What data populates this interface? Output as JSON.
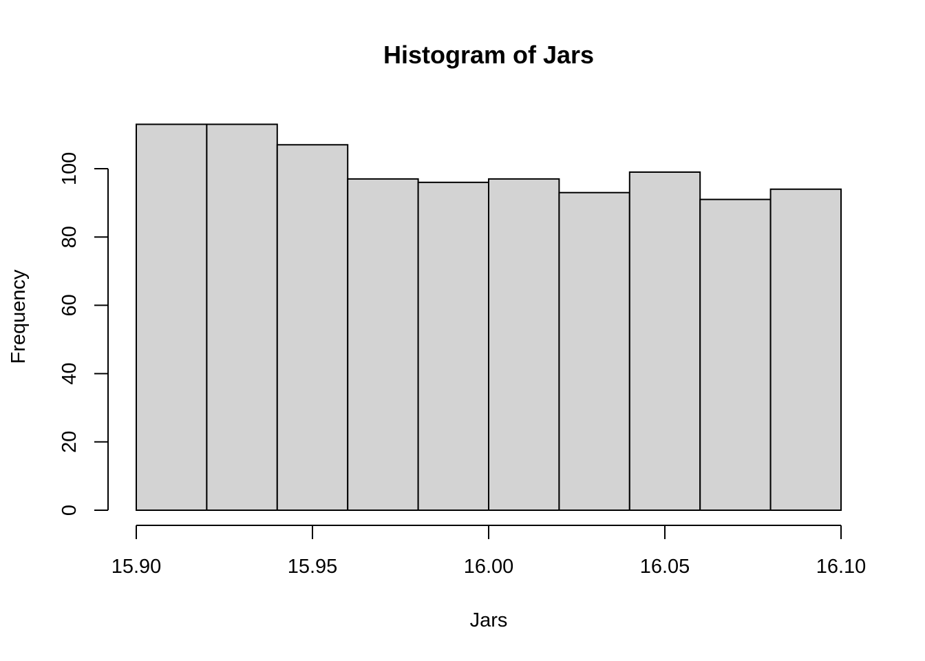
{
  "chart_data": {
    "type": "bar",
    "title": "Histogram of Jars",
    "xlabel": "Jars",
    "ylabel": "Frequency",
    "bin_edges": [
      15.9,
      15.92,
      15.94,
      15.96,
      15.98,
      16.0,
      16.02,
      16.04,
      16.06,
      16.08,
      16.1
    ],
    "values": [
      113,
      113,
      107,
      97,
      96,
      97,
      93,
      99,
      91,
      94
    ],
    "xlim": [
      15.9,
      16.1
    ],
    "ylim": [
      0,
      113
    ],
    "x_ticks": [
      15.9,
      15.95,
      16.0,
      16.05,
      16.1
    ],
    "x_tick_labels": [
      "15.90",
      "15.95",
      "16.00",
      "16.05",
      "16.10"
    ],
    "y_ticks": [
      0,
      20,
      40,
      60,
      80,
      100
    ],
    "y_tick_labels": [
      "0",
      "20",
      "40",
      "60",
      "80",
      "100"
    ],
    "bar_color": "#d3d3d3",
    "grid": false,
    "legend": "none"
  }
}
